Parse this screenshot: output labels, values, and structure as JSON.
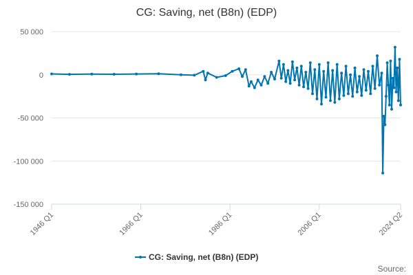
{
  "chart_data": {
    "type": "line",
    "title": "CG: Saving, net (B8n) (EDP)",
    "xlabel": "",
    "ylabel": "",
    "ylim": [
      -150000,
      50000
    ],
    "y_ticks": [
      {
        "value": 50000,
        "label": "50 000"
      },
      {
        "value": 0,
        "label": "0"
      },
      {
        "value": -50000,
        "label": "-50 000"
      },
      {
        "value": -100000,
        "label": "-100 000"
      },
      {
        "value": -150000,
        "label": "-150 000"
      }
    ],
    "x_range": [
      "1946 Q1",
      "2024 Q2"
    ],
    "x_ticks": [
      "1946 Q1",
      "1966 Q1",
      "1986 Q1",
      "2006 Q1",
      "2024 Q2"
    ],
    "grid": true,
    "legend_position": "bottom-center",
    "series_color": "#0075b0",
    "series": [
      {
        "name": "CG: Saving, net (B8n) (EDP)",
        "x": [
          "1946 Q1",
          "1950 Q1",
          "1955 Q1",
          "1960 Q1",
          "1965 Q1",
          "1970 Q1",
          "1975 Q1",
          "1978 Q1",
          "1980 Q1",
          "1980 Q3",
          "1981 Q1",
          "1983 Q1",
          "1985 Q1",
          "1986 Q3",
          "1988 Q1",
          "1988 Q4",
          "1989 Q3",
          "1990 Q2",
          "1990 Q4",
          "1991 Q3",
          "1992 Q2",
          "1993 Q1",
          "1993 Q4",
          "1994 Q3",
          "1995 Q2",
          "1996 Q1",
          "1997 Q1",
          "1997 Q3",
          "1998 Q1",
          "1998 Q3",
          "1999 Q1",
          "1999 Q3",
          "2000 Q1",
          "2000 Q3",
          "2001 Q1",
          "2001 Q3",
          "2002 Q1",
          "2002 Q3",
          "2003 Q1",
          "2003 Q3",
          "2004 Q1",
          "2004 Q3",
          "2005 Q1",
          "2005 Q3",
          "2006 Q1",
          "2006 Q3",
          "2007 Q1",
          "2007 Q3",
          "2008 Q1",
          "2008 Q3",
          "2009 Q1",
          "2009 Q3",
          "2010 Q1",
          "2010 Q3",
          "2011 Q1",
          "2011 Q3",
          "2012 Q1",
          "2012 Q3",
          "2013 Q1",
          "2013 Q3",
          "2014 Q1",
          "2014 Q3",
          "2015 Q1",
          "2015 Q3",
          "2016 Q1",
          "2016 Q3",
          "2017 Q1",
          "2017 Q3",
          "2018 Q1",
          "2018 Q3",
          "2019 Q1",
          "2019 Q3",
          "2020 Q1",
          "2020 Q2",
          "2020 Q3",
          "2020 Q4",
          "2021 Q1",
          "2021 Q2",
          "2021 Q3",
          "2021 Q4",
          "2022 Q1",
          "2022 Q2",
          "2022 Q3",
          "2022 Q4",
          "2023 Q1",
          "2023 Q2",
          "2023 Q3",
          "2023 Q4",
          "2024 Q1",
          "2024 Q2"
        ],
        "y": [
          1000,
          500,
          800,
          600,
          900,
          1200,
          0,
          -500,
          4000,
          -6000,
          2000,
          -3000,
          -1000,
          4000,
          7000,
          -2000,
          6000,
          -13000,
          -8000,
          -15000,
          -6000,
          -12000,
          -2000,
          -10000,
          3000,
          -5000,
          16000,
          -4000,
          12000,
          -8000,
          5000,
          -10000,
          15000,
          -6000,
          8000,
          -12000,
          10000,
          -14000,
          3000,
          -16000,
          14000,
          -22000,
          6000,
          -28000,
          12000,
          -34000,
          4000,
          -26000,
          14000,
          -30000,
          5000,
          -32000,
          12000,
          -28000,
          2000,
          -24000,
          10000,
          -22000,
          0,
          -25000,
          8000,
          -20000,
          -2000,
          -24000,
          6000,
          -18000,
          4000,
          -22000,
          10000,
          -16000,
          22000,
          -12000,
          2000,
          -114000,
          -48000,
          -58000,
          -25000,
          14000,
          -12000,
          -35000,
          16000,
          -40000,
          -4000,
          -15000,
          32000,
          -20000,
          8000,
          -30000,
          18000,
          -35000
        ]
      }
    ],
    "source_label": "Source:"
  }
}
